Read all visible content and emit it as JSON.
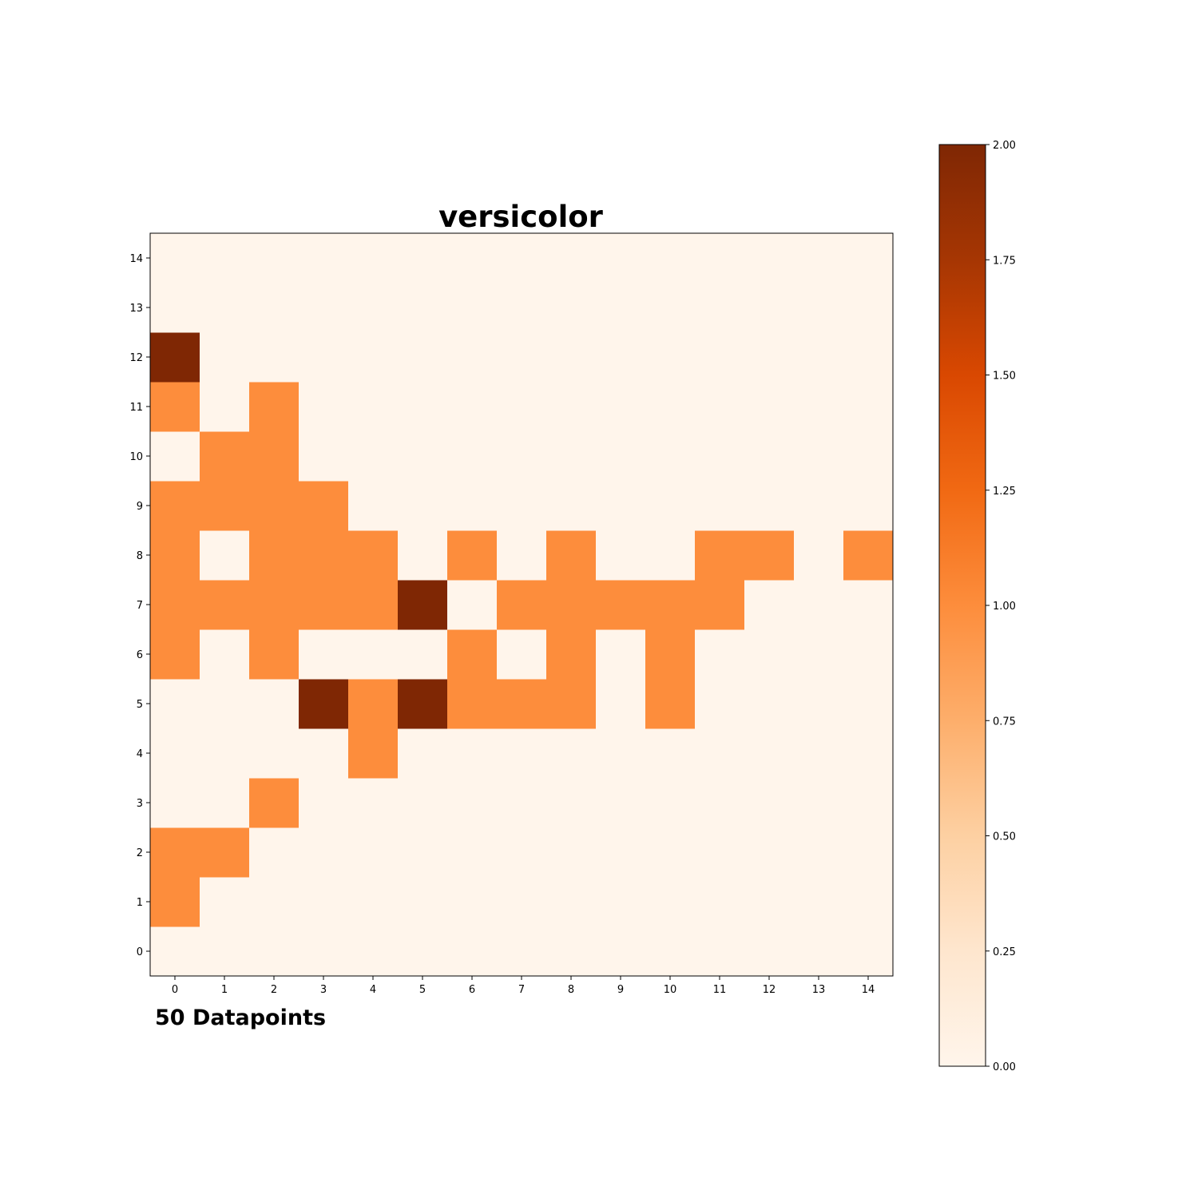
{
  "chart_data": {
    "type": "heatmap",
    "title": "versicolor",
    "annotation": "50 Datapoints",
    "x_ticks": [
      "0",
      "1",
      "2",
      "3",
      "4",
      "5",
      "6",
      "7",
      "8",
      "9",
      "10",
      "11",
      "12",
      "13",
      "14"
    ],
    "y_ticks": [
      "0",
      "1",
      "2",
      "3",
      "4",
      "5",
      "6",
      "7",
      "8",
      "9",
      "10",
      "11",
      "12",
      "13",
      "14"
    ],
    "colormap": "Oranges",
    "vmin": 0,
    "vmax": 2,
    "colorbar_ticks": [
      "0.00",
      "0.25",
      "0.50",
      "0.75",
      "1.00",
      "1.25",
      "1.50",
      "1.75",
      "2.00"
    ],
    "grid": false,
    "rows_bottom_to_top": [
      [
        0,
        0,
        0,
        0,
        0,
        0,
        0,
        0,
        0,
        0,
        0,
        0,
        0,
        0,
        0
      ],
      [
        1,
        0,
        0,
        0,
        0,
        0,
        0,
        0,
        0,
        0,
        0,
        0,
        0,
        0,
        0
      ],
      [
        1,
        1,
        0,
        0,
        0,
        0,
        0,
        0,
        0,
        0,
        0,
        0,
        0,
        0,
        0
      ],
      [
        0,
        0,
        1,
        0,
        0,
        0,
        0,
        0,
        0,
        0,
        0,
        0,
        0,
        0,
        0
      ],
      [
        0,
        0,
        0,
        0,
        1,
        0,
        0,
        0,
        0,
        0,
        0,
        0,
        0,
        0,
        0
      ],
      [
        0,
        0,
        0,
        2,
        1,
        2,
        1,
        1,
        1,
        0,
        1,
        0,
        0,
        0,
        0
      ],
      [
        1,
        0,
        1,
        0,
        0,
        0,
        1,
        0,
        1,
        0,
        1,
        0,
        0,
        0,
        0
      ],
      [
        1,
        1,
        1,
        1,
        1,
        2,
        0,
        1,
        1,
        1,
        1,
        1,
        0,
        0,
        0
      ],
      [
        1,
        0,
        1,
        1,
        1,
        0,
        1,
        0,
        1,
        0,
        0,
        1,
        1,
        0,
        1
      ],
      [
        1,
        1,
        1,
        1,
        0,
        0,
        0,
        0,
        0,
        0,
        0,
        0,
        0,
        0,
        0
      ],
      [
        0,
        1,
        1,
        0,
        0,
        0,
        0,
        0,
        0,
        0,
        0,
        0,
        0,
        0,
        0
      ],
      [
        1,
        0,
        1,
        0,
        0,
        0,
        0,
        0,
        0,
        0,
        0,
        0,
        0,
        0,
        0
      ],
      [
        2,
        0,
        0,
        0,
        0,
        0,
        0,
        0,
        0,
        0,
        0,
        0,
        0,
        0,
        0
      ],
      [
        0,
        0,
        0,
        0,
        0,
        0,
        0,
        0,
        0,
        0,
        0,
        0,
        0,
        0,
        0
      ],
      [
        0,
        0,
        0,
        0,
        0,
        0,
        0,
        0,
        0,
        0,
        0,
        0,
        0,
        0,
        0
      ]
    ]
  }
}
